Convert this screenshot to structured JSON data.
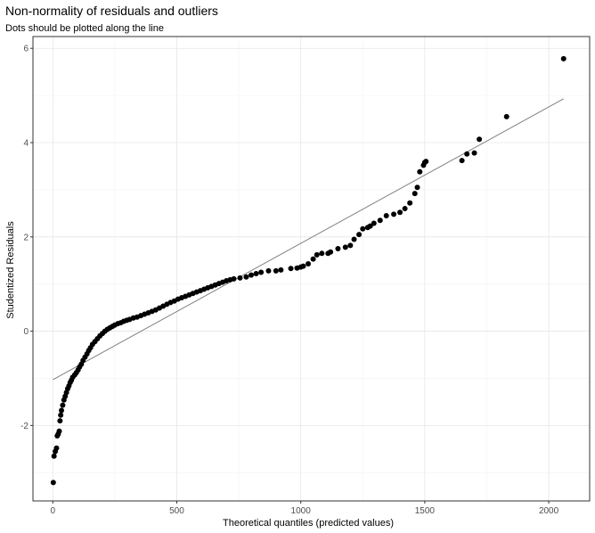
{
  "chart_data": {
    "type": "scatter",
    "title": "Non-normality of residuals and outliers",
    "subtitle": "Dots should be plotted along the line",
    "xlabel": "Theoretical quantiles (predicted values)",
    "ylabel": "Studentized Residuals",
    "xlim": [
      -80,
      2165
    ],
    "ylim": [
      -3.6,
      6.25
    ],
    "x_ticks": [
      0,
      500,
      1000,
      1500,
      2000
    ],
    "y_ticks": [
      -2,
      0,
      2,
      4,
      6
    ],
    "x_tick_labels": [
      "0",
      "500",
      "1000",
      "1500",
      "2000"
    ],
    "y_tick_labels": [
      "-2",
      "0",
      "2",
      "4",
      "6"
    ],
    "grid": true,
    "legend": "none",
    "point_color": "#000000",
    "line_color": "#808080",
    "reference_line": {
      "x": [
        0,
        2060
      ],
      "y": [
        -1.03,
        4.93
      ]
    },
    "x": [
      2,
      5,
      10,
      15,
      18,
      22,
      26,
      29,
      32,
      35,
      40,
      45,
      50,
      55,
      60,
      65,
      70,
      75,
      80,
      88,
      95,
      102,
      108,
      115,
      122,
      130,
      138,
      145,
      152,
      160,
      170,
      180,
      190,
      200,
      210,
      220,
      230,
      240,
      250,
      262,
      274,
      286,
      298,
      310,
      325,
      340,
      355,
      370,
      385,
      400,
      415,
      430,
      445,
      460,
      475,
      490,
      505,
      520,
      535,
      550,
      565,
      580,
      595,
      610,
      625,
      640,
      655,
      670,
      685,
      700,
      715,
      730,
      755,
      780,
      800,
      820,
      840,
      870,
      900,
      920,
      960,
      985,
      1000,
      1010,
      1030,
      1050,
      1065,
      1085,
      1110,
      1120,
      1150,
      1180,
      1200,
      1215,
      1235,
      1250,
      1270,
      1280,
      1295,
      1320,
      1345,
      1375,
      1400,
      1420,
      1440,
      1460,
      1470,
      1480,
      1495,
      1500,
      1505,
      1650,
      1670,
      1700,
      1720,
      1830,
      2060
    ],
    "y": [
      -3.21,
      -2.65,
      -2.55,
      -2.48,
      -2.22,
      -2.18,
      -2.12,
      -1.9,
      -1.78,
      -1.68,
      -1.57,
      -1.46,
      -1.38,
      -1.3,
      -1.22,
      -1.16,
      -1.09,
      -1.04,
      -0.98,
      -0.93,
      -0.88,
      -0.82,
      -0.76,
      -0.7,
      -0.62,
      -0.55,
      -0.48,
      -0.41,
      -0.35,
      -0.28,
      -0.22,
      -0.16,
      -0.1,
      -0.05,
      0.0,
      0.04,
      0.07,
      0.1,
      0.13,
      0.16,
      0.18,
      0.21,
      0.23,
      0.25,
      0.28,
      0.3,
      0.33,
      0.36,
      0.39,
      0.42,
      0.45,
      0.49,
      0.53,
      0.57,
      0.61,
      0.64,
      0.68,
      0.71,
      0.74,
      0.77,
      0.8,
      0.83,
      0.86,
      0.89,
      0.92,
      0.95,
      0.98,
      1.01,
      1.04,
      1.07,
      1.09,
      1.11,
      1.13,
      1.15,
      1.19,
      1.22,
      1.25,
      1.28,
      1.28,
      1.3,
      1.33,
      1.34,
      1.36,
      1.38,
      1.43,
      1.53,
      1.62,
      1.65,
      1.65,
      1.68,
      1.75,
      1.78,
      1.82,
      1.95,
      2.05,
      2.17,
      2.2,
      2.23,
      2.29,
      2.35,
      2.45,
      2.48,
      2.52,
      2.6,
      2.72,
      2.92,
      3.05,
      3.38,
      3.52,
      3.58,
      3.6,
      3.62,
      3.76,
      3.78,
      4.07,
      4.55,
      5.78
    ]
  }
}
